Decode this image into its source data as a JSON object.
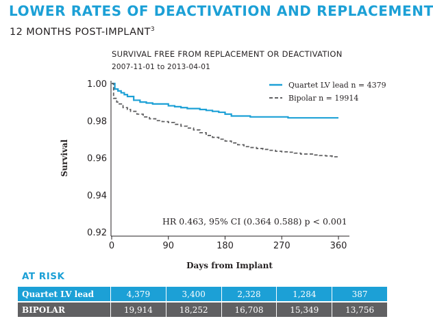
{
  "headline": "LOWER RATES OF DEACTIVATION AND REPLACEMENT",
  "subheadline": "12 MONTHS POST-IMPLANT",
  "subheadline_sup": "3",
  "chart_data": {
    "type": "line",
    "title": "SURVIVAL FREE FROM REPLACEMENT OR DEACTIVATION",
    "subtitle": "2007-11-01 to 2013-04-01",
    "xlabel": "Days from Implant",
    "ylabel": "Survival",
    "xlim": [
      0,
      360
    ],
    "ylim": [
      0.92,
      1.0
    ],
    "xticks": [
      0,
      90,
      180,
      270,
      360
    ],
    "xtick_labels": [
      "0",
      "90",
      "180",
      "270",
      "360"
    ],
    "yticks": [
      0.92,
      0.94,
      0.96,
      0.98,
      1.0
    ],
    "ytick_labels": [
      "0.92",
      "0.94",
      "0.96",
      "0.98",
      "1.00"
    ],
    "grid": false,
    "legend_position": "top-right",
    "annotation": "HR 0.463, 95% CI (0.364 0.588) p < 0.001",
    "series": [
      {
        "name": "Quartet LV lead n = 4379",
        "style": "solid",
        "color": "#1ca0d6",
        "x": [
          0,
          5,
          10,
          15,
          20,
          25,
          35,
          45,
          55,
          65,
          80,
          90,
          100,
          110,
          120,
          130,
          140,
          150,
          160,
          170,
          180,
          190,
          200,
          210,
          220,
          230,
          240,
          250,
          260,
          270,
          280,
          290,
          300,
          310,
          320,
          330,
          340,
          350,
          360
        ],
        "y": [
          1.0,
          0.997,
          0.996,
          0.995,
          0.994,
          0.993,
          0.991,
          0.99,
          0.9895,
          0.989,
          0.989,
          0.988,
          0.9875,
          0.987,
          0.9865,
          0.9865,
          0.986,
          0.9855,
          0.985,
          0.9845,
          0.9835,
          0.9825,
          0.9825,
          0.9825,
          0.982,
          0.982,
          0.982,
          0.982,
          0.982,
          0.982,
          0.9815,
          0.9815,
          0.9815,
          0.9815,
          0.9815,
          0.9815,
          0.9815,
          0.9815,
          0.9815
        ]
      },
      {
        "name": "Bipolar n = 19914",
        "style": "dashed",
        "color": "#606062",
        "x": [
          0,
          3,
          8,
          12,
          18,
          25,
          30,
          40,
          50,
          60,
          70,
          80,
          90,
          100,
          110,
          120,
          130,
          140,
          150,
          160,
          170,
          180,
          190,
          200,
          210,
          220,
          230,
          240,
          250,
          260,
          270,
          280,
          290,
          300,
          310,
          320,
          330,
          340,
          350,
          360
        ],
        "y": [
          1.0,
          0.992,
          0.99,
          0.989,
          0.987,
          0.986,
          0.985,
          0.9835,
          0.982,
          0.981,
          0.98,
          0.9795,
          0.979,
          0.978,
          0.977,
          0.976,
          0.975,
          0.9735,
          0.972,
          0.971,
          0.97,
          0.969,
          0.968,
          0.967,
          0.966,
          0.9655,
          0.965,
          0.9645,
          0.964,
          0.9635,
          0.9632,
          0.963,
          0.9625,
          0.962,
          0.962,
          0.9615,
          0.9612,
          0.961,
          0.9605,
          0.96
        ]
      }
    ]
  },
  "at_risk": {
    "title": "AT RISK",
    "rows": [
      {
        "label": "Quartet LV lead",
        "values": [
          "4,379",
          "3,400",
          "2,328",
          "1,284",
          "387"
        ]
      },
      {
        "label": "BIPOLAR",
        "values": [
          "19,914",
          "18,252",
          "16,708",
          "15,349",
          "13,756"
        ]
      }
    ]
  }
}
